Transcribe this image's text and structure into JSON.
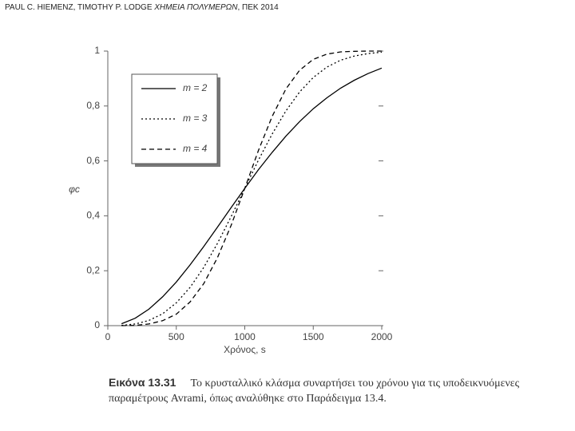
{
  "header": {
    "authors": "PAUL C. HIEMENZ, TIMOTHY P. LODGE",
    "book": "ΧΗΜΕΙΑ ΠΟΛΥΜΕΡΩΝ",
    "publisher": ", ΠΕΚ 2014"
  },
  "caption": {
    "label": "Εικόνα 13.31",
    "text": "Το κρυσταλλικό κλάσμα συναρτήσει του χρόνου για τις υποδεικνυόμενες παραμέτρους Avrami, όπως αναλύθηκε στο Παράδειγμα 13.4."
  },
  "chart_data": {
    "type": "line",
    "x_label": "Χρόνος, s",
    "y_label": "φc",
    "x": [
      100,
      200,
      300,
      400,
      500,
      600,
      700,
      800,
      900,
      1000,
      1100,
      1200,
      1300,
      1400,
      1500,
      1600,
      1700,
      1800,
      1900,
      2000
    ],
    "series": [
      {
        "name": "m = 2",
        "color": "#000000",
        "linestyle": "solid",
        "values": [
          0.007,
          0.027,
          0.06,
          0.105,
          0.159,
          0.221,
          0.288,
          0.358,
          0.43,
          0.5,
          0.568,
          0.631,
          0.69,
          0.743,
          0.79,
          0.83,
          0.865,
          0.894,
          0.918,
          0.938
        ]
      },
      {
        "name": "m = 3",
        "color": "#000000",
        "linestyle": "dotted",
        "values": [
          0.001,
          0.006,
          0.019,
          0.043,
          0.083,
          0.139,
          0.212,
          0.299,
          0.397,
          0.5,
          0.603,
          0.698,
          0.782,
          0.851,
          0.904,
          0.942,
          0.967,
          0.982,
          0.991,
          0.996
        ]
      },
      {
        "name": "m = 4",
        "color": "#000000",
        "linestyle": "dashed",
        "values": [
          0.0,
          0.001,
          0.006,
          0.018,
          0.042,
          0.086,
          0.153,
          0.247,
          0.365,
          0.5,
          0.638,
          0.762,
          0.862,
          0.93,
          0.97,
          0.989,
          0.997,
          0.999,
          1.0,
          1.0
        ]
      }
    ],
    "xlim": [
      0,
      2000
    ],
    "ylim": [
      0,
      1
    ],
    "xticks": [
      0,
      500,
      1000,
      1500,
      2000
    ],
    "yticks": [
      0,
      {
        "value": 0.2,
        "label": "0,2"
      },
      {
        "value": 0.4,
        "label": "0,4"
      },
      {
        "value": 0.6,
        "label": "0,6"
      },
      {
        "value": 0.8,
        "label": "0,8"
      },
      1
    ],
    "legend": "upper left",
    "grid": false
  }
}
